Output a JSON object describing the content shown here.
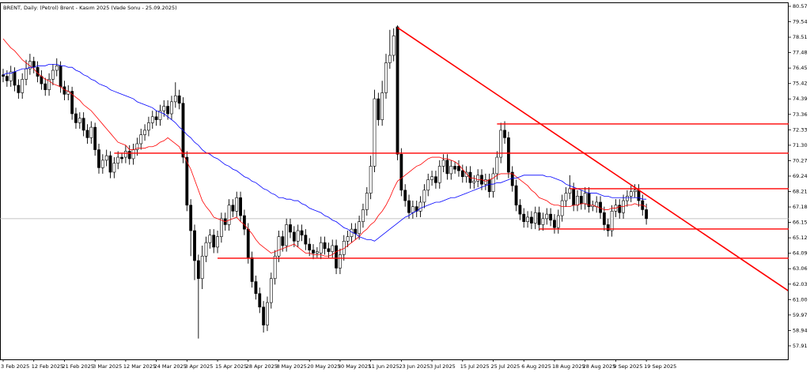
{
  "chart_data": {
    "type": "candlestick",
    "title": "BRENT, Daily:  (Petrol) Brent - Kasım 2025 (Vade Sonu - 25.09.2025)",
    "categories": [
      "3 Feb 2025",
      null,
      null,
      null,
      null,
      null,
      null,
      null,
      "12 Feb 2025",
      null,
      null,
      null,
      null,
      null,
      null,
      null,
      "21 Feb 2025",
      null,
      null,
      null,
      null,
      null,
      null,
      null,
      "3 Mar 2025",
      null,
      null,
      null,
      null,
      null,
      null,
      null,
      "12 Mar 2025",
      null,
      null,
      null,
      null,
      null,
      null,
      null,
      "24 Mar 2025",
      null,
      null,
      null,
      null,
      null,
      null,
      null,
      "3 Apr 2025",
      null,
      null,
      null,
      null,
      null,
      null,
      null,
      "15 Apr 2025",
      null,
      null,
      null,
      null,
      null,
      null,
      null,
      "28 Apr 2025",
      null,
      null,
      null,
      null,
      null,
      null,
      null,
      "8 May 2025",
      null,
      null,
      null,
      null,
      null,
      null,
      null,
      "20 May 2025",
      null,
      null,
      null,
      null,
      null,
      null,
      null,
      "30 May 2025",
      null,
      null,
      null,
      null,
      null,
      null,
      null,
      "11 Jun 2025",
      null,
      null,
      null,
      null,
      null,
      null,
      null,
      "23 Jun 2025",
      null,
      null,
      null,
      null,
      null,
      null,
      null,
      "3 Jul 2025",
      null,
      null,
      null,
      null,
      null,
      null,
      null,
      "15 Jul 2025",
      null,
      null,
      null,
      null,
      null,
      null,
      null,
      "25 Jul 2025",
      null,
      null,
      null,
      null,
      null,
      null,
      null,
      "6 Aug 2025",
      null,
      null,
      null,
      null,
      null,
      null,
      null,
      "18 Aug 2025",
      null,
      null,
      null,
      null,
      null,
      null,
      null,
      "28 Aug 2025",
      null,
      null,
      null,
      null,
      null,
      null,
      null,
      "9 Sep 2025",
      null,
      null,
      null,
      null,
      null,
      null,
      null,
      "19 Sep 2025"
    ],
    "open": [
      76.0,
      75.9,
      75.6,
      76.2,
      75.3,
      74.8,
      75.7,
      76.4,
      76.9,
      76.5,
      75.9,
      75.4,
      75.0,
      75.7,
      76.3,
      76.6,
      75.2,
      74.7,
      74.9,
      73.4,
      72.8,
      73.1,
      72.3,
      71.8,
      72.5,
      71.0,
      69.8,
      70.3,
      70.6,
      69.5,
      70.1,
      70.5,
      70.5,
      70.9,
      70.4,
      71.0,
      71.4,
      72.0,
      72.3,
      72.8,
      73.2,
      73.0,
      73.6,
      73.9,
      73.4,
      74.2,
      74.6,
      74.1,
      70.5,
      67.3,
      65.6,
      63.6,
      62.4,
      63.9,
      64.8,
      65.3,
      64.5,
      65.2,
      66.4,
      66.0,
      67.3,
      66.9,
      67.8,
      66.6,
      65.7,
      63.8,
      62.2,
      61.4,
      60.5,
      59.3,
      60.8,
      62.4,
      63.9,
      65.2,
      64.6,
      66.0,
      65.5,
      64.9,
      65.6,
      65.3,
      64.7,
      64.3,
      64.1,
      64.1,
      64.8,
      64.4,
      64.2,
      64.6,
      63.1,
      64.0,
      64.9,
      65.2,
      65.7,
      65.4,
      66.2,
      67.0,
      68.1,
      69.9,
      74.4,
      73.0,
      74.8,
      76.8,
      77.3,
      79.2,
      70.7,
      68.3,
      67.6,
      66.8,
      67.2,
      66.9,
      67.5,
      68.3,
      69.0,
      69.2,
      68.8,
      69.9,
      70.3,
      69.4,
      69.9,
      69.9,
      69.6,
      69.2,
      69.5,
      68.8,
      68.9,
      69.3,
      68.7,
      69.0,
      68.2,
      69.4,
      70.5,
      72.3,
      71.8,
      69.5,
      68.6,
      67.3,
      66.7,
      66.2,
      66.5,
      66.1,
      66.8,
      66.0,
      66.4,
      66.7,
      66.3,
      65.8,
      66.6,
      67.6,
      68.1,
      68.4,
      67.3,
      67.9,
      67.4,
      68.1,
      67.2,
      67.2,
      67.5,
      66.8,
      66.0,
      65.6,
      66.9,
      67.3,
      66.8,
      67.6,
      67.9,
      68.2,
      68.3,
      67.6,
      67.0
    ],
    "high": [
      76.4,
      76.3,
      76.6,
      76.5,
      75.7,
      76.1,
      77.0,
      77.4,
      77.2,
      76.9,
      76.3,
      75.8,
      76.1,
      76.7,
      77.1,
      76.9,
      75.6,
      75.3,
      75.2,
      73.8,
      73.5,
      73.5,
      72.7,
      72.9,
      72.8,
      71.4,
      70.7,
      71.0,
      70.9,
      70.5,
      70.9,
      70.8,
      71.3,
      71.3,
      71.4,
      71.8,
      72.4,
      72.7,
      73.2,
      73.6,
      73.6,
      74.0,
      74.3,
      74.3,
      74.6,
      75.5,
      75.0,
      74.5,
      70.9,
      67.7,
      66.0,
      64.0,
      64.6,
      65.2,
      65.7,
      65.7,
      65.6,
      66.8,
      66.8,
      67.7,
      67.7,
      68.2,
      68.2,
      67.0,
      66.1,
      64.2,
      62.6,
      61.8,
      60.9,
      61.2,
      62.8,
      64.3,
      65.6,
      65.6,
      66.4,
      66.4,
      65.9,
      66.0,
      66.0,
      65.7,
      65.1,
      64.7,
      64.5,
      65.2,
      65.2,
      64.8,
      65.0,
      65.0,
      64.4,
      65.3,
      65.6,
      66.1,
      66.1,
      66.6,
      67.4,
      68.5,
      70.6,
      75.0,
      74.8,
      75.6,
      77.4,
      79.0,
      79.1,
      79.3,
      71.1,
      68.7,
      68.0,
      67.6,
      67.6,
      67.9,
      68.7,
      69.4,
      69.6,
      69.6,
      70.3,
      70.7,
      70.7,
      70.3,
      70.2,
      70.3,
      70.0,
      69.9,
      69.9,
      69.3,
      69.7,
      69.7,
      69.4,
      69.4,
      69.8,
      70.9,
      72.8,
      72.9,
      72.2,
      69.9,
      69.0,
      67.7,
      67.1,
      66.9,
      66.9,
      67.2,
      67.2,
      66.8,
      67.1,
      67.1,
      66.7,
      67.0,
      68.0,
      68.5,
      69.3,
      68.8,
      68.3,
      68.3,
      68.5,
      68.5,
      67.6,
      67.9,
      67.9,
      67.2,
      66.4,
      67.3,
      67.7,
      67.7,
      68.0,
      68.3,
      68.6,
      68.7,
      68.7,
      68.0,
      67.4
    ],
    "low": [
      75.5,
      75.2,
      75.2,
      74.9,
      74.4,
      74.4,
      75.3,
      76.0,
      76.1,
      75.5,
      75.0,
      74.6,
      74.6,
      75.3,
      75.9,
      74.8,
      74.3,
      74.3,
      73.0,
      72.4,
      72.4,
      71.9,
      71.4,
      71.4,
      70.6,
      69.4,
      69.4,
      69.9,
      69.1,
      69.1,
      69.7,
      70.1,
      70.1,
      70.0,
      70.0,
      70.6,
      71.0,
      71.6,
      71.9,
      72.4,
      72.6,
      72.6,
      73.2,
      73.0,
      73.0,
      73.8,
      73.7,
      70.1,
      66.9,
      63.9,
      62.3,
      58.4,
      61.7,
      63.5,
      64.4,
      64.1,
      64.1,
      64.8,
      65.6,
      65.6,
      66.5,
      66.5,
      66.2,
      65.3,
      63.4,
      61.8,
      61.0,
      60.1,
      58.8,
      58.9,
      60.4,
      62.0,
      63.5,
      64.2,
      64.2,
      65.1,
      64.5,
      64.5,
      64.9,
      64.3,
      63.9,
      63.7,
      63.8,
      63.7,
      64.0,
      63.8,
      63.8,
      62.7,
      62.7,
      63.6,
      64.5,
      64.8,
      65.0,
      65.0,
      65.8,
      66.6,
      67.7,
      69.5,
      72.6,
      72.6,
      74.4,
      76.4,
      76.9,
      70.3,
      67.9,
      67.2,
      66.4,
      66.4,
      66.5,
      66.5,
      67.1,
      67.9,
      68.6,
      68.4,
      68.4,
      69.5,
      69.0,
      69.0,
      69.4,
      69.2,
      68.8,
      68.8,
      68.4,
      68.4,
      68.5,
      68.3,
      68.3,
      67.8,
      67.8,
      69.0,
      70.1,
      71.4,
      69.1,
      68.2,
      66.9,
      66.3,
      65.8,
      65.8,
      65.7,
      65.7,
      65.6,
      65.6,
      66.0,
      65.9,
      65.4,
      65.4,
      66.2,
      67.2,
      67.7,
      66.9,
      66.9,
      67.0,
      67.0,
      66.8,
      66.9,
      66.8,
      66.4,
      65.6,
      65.2,
      65.2,
      66.5,
      66.4,
      66.4,
      67.2,
      67.5,
      67.8,
      67.2,
      66.6,
      66.0
    ],
    "close": [
      75.9,
      75.6,
      76.2,
      75.3,
      74.8,
      75.7,
      76.4,
      76.9,
      76.5,
      75.9,
      75.4,
      75.0,
      75.7,
      76.3,
      76.6,
      75.2,
      74.7,
      74.9,
      73.4,
      72.8,
      73.1,
      72.3,
      71.8,
      72.5,
      71.0,
      69.8,
      70.3,
      70.6,
      69.5,
      70.1,
      70.5,
      70.4,
      70.9,
      70.4,
      71.0,
      71.4,
      72.0,
      72.3,
      72.8,
      73.2,
      73.0,
      73.6,
      73.9,
      73.4,
      74.2,
      74.6,
      74.1,
      70.5,
      67.3,
      65.6,
      63.6,
      62.4,
      63.9,
      64.8,
      65.3,
      64.5,
      65.2,
      66.4,
      66.0,
      67.3,
      66.9,
      67.8,
      66.6,
      65.7,
      63.8,
      62.2,
      61.4,
      60.5,
      59.3,
      60.8,
      62.4,
      63.9,
      65.2,
      64.6,
      66.0,
      65.5,
      64.9,
      65.6,
      65.3,
      64.7,
      64.3,
      64.1,
      64.2,
      64.8,
      64.4,
      64.2,
      64.6,
      63.1,
      64.0,
      64.9,
      65.2,
      65.7,
      65.4,
      66.2,
      67.0,
      68.1,
      69.9,
      74.4,
      73.0,
      74.8,
      76.8,
      77.3,
      78.6,
      70.7,
      68.3,
      67.6,
      66.8,
      67.2,
      66.9,
      67.5,
      68.3,
      69.0,
      69.2,
      68.8,
      69.9,
      70.3,
      69.4,
      69.9,
      69.7,
      69.6,
      69.2,
      69.5,
      68.8,
      68.9,
      69.3,
      68.7,
      69.0,
      68.2,
      69.4,
      70.5,
      72.3,
      71.8,
      69.5,
      68.6,
      67.3,
      66.7,
      66.2,
      66.5,
      66.1,
      66.8,
      66.0,
      66.4,
      66.7,
      66.3,
      65.8,
      66.6,
      67.6,
      68.1,
      68.4,
      67.3,
      67.9,
      67.4,
      68.1,
      67.2,
      67.3,
      67.5,
      66.8,
      66.0,
      65.6,
      66.9,
      67.3,
      66.8,
      67.6,
      67.9,
      68.2,
      68.3,
      67.6,
      67.0,
      66.4
    ],
    "up_color": "#ffffff",
    "down_color": "#000000",
    "overlays": [
      {
        "color": "#ff0000",
        "values": [
          78.4,
          78.1,
          77.8,
          77.6,
          77.3,
          77.0,
          76.8,
          76.6,
          76.4,
          76.1,
          75.9,
          75.7,
          75.6,
          75.4,
          75.3,
          75.2,
          75.0,
          74.9,
          74.7,
          74.5,
          74.3,
          74.0,
          73.8,
          73.6,
          73.3,
          73.0,
          72.7,
          72.4,
          72.1,
          71.8,
          71.5,
          71.4,
          71.3,
          71.0,
          71.0,
          71.1,
          71.1,
          71.1,
          71.2,
          71.2,
          71.3,
          71.5,
          71.6,
          71.8,
          71.6,
          71.4,
          71.2,
          70.7,
          70.2,
          69.7,
          69.0,
          68.3,
          67.6,
          67.2,
          66.9,
          66.5,
          66.4,
          66.3,
          66.2,
          66.3,
          66.4,
          66.5,
          66.2,
          66.0,
          65.7,
          65.4,
          65.0,
          64.7,
          64.5,
          64.3,
          64.1,
          64.2,
          64.3,
          64.4,
          64.5,
          64.6,
          64.7,
          64.5,
          64.3,
          64.1,
          64.1,
          64.0,
          64.0,
          64.0,
          63.9,
          63.9,
          64.0,
          64.2,
          64.3,
          64.4,
          64.6,
          64.8,
          65.0,
          65.2,
          65.5,
          65.7,
          66.0,
          66.2,
          66.6,
          66.9,
          67.3,
          67.8,
          68.4,
          68.9,
          69.1,
          69.3,
          69.5,
          69.7,
          69.9,
          70.0,
          70.2,
          70.4,
          70.5,
          70.5,
          70.5,
          70.4,
          70.4,
          70.3,
          70.2,
          70.0,
          69.7,
          69.4,
          69.1,
          69.1,
          69.0,
          69.0,
          68.9,
          69.0,
          69.1,
          69.3,
          69.4,
          69.4,
          69.4,
          69.4,
          69.2,
          69.0,
          68.8,
          68.6,
          68.3,
          68.1,
          67.8,
          67.7,
          67.6,
          67.4,
          67.3,
          67.3,
          67.2,
          67.2,
          67.2,
          67.3,
          67.3,
          67.4,
          67.4,
          67.3,
          67.3,
          67.2,
          67.1,
          67.0,
          67.0,
          67.1,
          67.1,
          67.2,
          67.2,
          67.3,
          67.3,
          67.4,
          67.3,
          67.3,
          67.2
        ]
      },
      {
        "color": "#0000ff",
        "values": [
          76.0,
          76.1,
          76.1,
          76.2,
          76.3,
          76.4,
          76.4,
          76.5,
          76.5,
          76.6,
          76.6,
          76.6,
          76.7,
          76.7,
          76.7,
          76.6,
          76.6,
          76.5,
          76.5,
          76.3,
          76.2,
          76.0,
          75.9,
          75.7,
          75.6,
          75.4,
          75.3,
          75.2,
          75.0,
          74.9,
          74.8,
          74.7,
          74.6,
          74.5,
          74.4,
          74.2,
          74.1,
          74.0,
          73.9,
          73.8,
          73.6,
          73.5,
          73.4,
          73.2,
          73.0,
          72.8,
          72.5,
          72.3,
          72.0,
          71.8,
          71.5,
          71.3,
          71.0,
          70.8,
          70.7,
          70.5,
          70.4,
          70.2,
          70.0,
          69.9,
          69.7,
          69.6,
          69.4,
          69.2,
          69.1,
          68.9,
          68.8,
          68.6,
          68.4,
          68.3,
          68.1,
          68.0,
          67.8,
          67.8,
          67.7,
          67.7,
          67.6,
          67.6,
          67.4,
          67.3,
          67.1,
          67.0,
          66.9,
          66.8,
          66.6,
          66.5,
          66.3,
          66.2,
          66.0,
          65.8,
          65.7,
          65.5,
          65.4,
          65.2,
          65.1,
          65.0,
          65.0,
          64.9,
          65.1,
          65.3,
          65.5,
          65.7,
          65.9,
          66.1,
          66.3,
          66.5,
          66.6,
          66.8,
          66.9,
          67.1,
          67.2,
          67.3,
          67.4,
          67.5,
          67.5,
          67.6,
          67.7,
          67.8,
          67.8,
          67.9,
          68.0,
          68.1,
          68.2,
          68.3,
          68.4,
          68.5,
          68.6,
          68.7,
          68.7,
          68.8,
          68.8,
          68.9,
          69.0,
          69.1,
          69.1,
          69.2,
          69.3,
          69.3,
          69.3,
          69.3,
          69.3,
          69.3,
          69.2,
          69.2,
          69.1,
          69.0,
          68.9,
          68.7,
          68.6,
          68.5,
          68.4,
          68.3,
          68.2,
          68.1,
          68.1,
          68.1,
          68.0,
          67.9,
          67.9,
          67.8,
          67.8,
          67.8,
          67.8,
          67.8,
          67.8,
          67.8,
          67.8,
          67.7,
          67.7
        ]
      }
    ],
    "levels": [
      {
        "value": 72.72,
        "start": 129,
        "color": "#ff0000"
      },
      {
        "value": 70.77,
        "start": 29,
        "color": "#ff0000"
      },
      {
        "value": 68.4,
        "start": 148,
        "color": "#ff0000"
      },
      {
        "value": 65.71,
        "start": 140,
        "color": "#ff0000"
      },
      {
        "value": 63.76,
        "start": 56,
        "color": "#ff0000"
      }
    ],
    "trendline": {
      "x": [
        103,
        205
      ],
      "y": [
        79.15,
        61.6
      ],
      "color": "#ff0000"
    },
    "ylim": [
      57.01,
      80.78
    ],
    "yticks": [
      80.57,
      79.54,
      78.51,
      77.48,
      76.45,
      75.42,
      74.39,
      73.36,
      72.33,
      {
        "value": 71.3,
        "label": "71.30"
      },
      70.27,
      69.24,
      68.21,
      67.18,
      66.15,
      65.12,
      64.09,
      63.06,
      62.03,
      {
        "value": 61,
        "label": "61.00"
      },
      59.97,
      58.94,
      57.91
    ],
    "grid": false
  }
}
